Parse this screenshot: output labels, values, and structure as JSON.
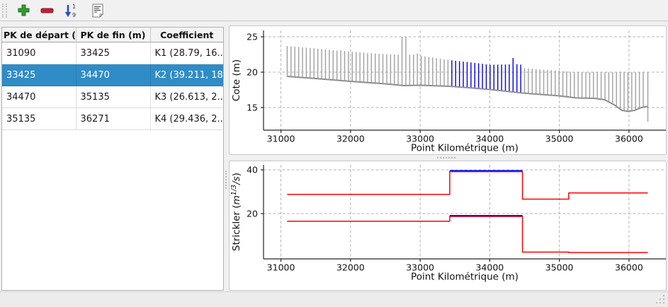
{
  "toolbar": {
    "buttons": [
      {
        "id": "add",
        "icon": "plus-icon"
      },
      {
        "id": "remove",
        "icon": "minus-icon"
      },
      {
        "id": "sort",
        "icon": "sort-numeric-icon",
        "hint_top": "1",
        "hint_bottom": "9"
      },
      {
        "id": "report",
        "icon": "report-icon"
      }
    ]
  },
  "table": {
    "columns": [
      "PK de départ (m)",
      "PK de fin (m)",
      "Coefficient"
    ],
    "rows": [
      {
        "pk_start": "31090",
        "pk_end": "33425",
        "coefficient": "K1 (28.79, 16....",
        "selected": false
      },
      {
        "pk_start": "33425",
        "pk_end": "34470",
        "coefficient": "K2 (39.211, 18...",
        "selected": true
      },
      {
        "pk_start": "34470",
        "pk_end": "35135",
        "coefficient": "K3 (26.613, 2....",
        "selected": false
      },
      {
        "pk_start": "35135",
        "pk_end": "36271",
        "coefficient": "K4 (29.436, 2....",
        "selected": false
      }
    ],
    "selection_color": "#308cc6"
  },
  "chart_data": [
    {
      "type": "bar",
      "title": "",
      "xlabel": "Point Kilométrique (m)",
      "ylabel": "Cote (m)",
      "xlim": [
        30750,
        36530
      ],
      "ylim": [
        11.8,
        25.9
      ],
      "xticks": [
        31000,
        32000,
        33000,
        34000,
        35000,
        36000
      ],
      "yticks": [
        15,
        20,
        25
      ],
      "grid": true,
      "colors": {
        "bar": "#a0a0a0",
        "bed": "#8f8f8f",
        "selected": "#0000ee"
      },
      "selected_range": [
        33425,
        34470
      ],
      "bars": {
        "start": 31090,
        "end": 36250,
        "step": 55
      },
      "final_profile": {
        "x": 36271,
        "bottom": 13.0,
        "top": 20.0
      },
      "bed_points": [
        [
          31090,
          19.4
        ],
        [
          31500,
          19.1
        ],
        [
          32000,
          18.7
        ],
        [
          32500,
          18.35
        ],
        [
          32760,
          18.1
        ],
        [
          33000,
          18.15
        ],
        [
          33425,
          18.0
        ],
        [
          33700,
          17.8
        ],
        [
          34000,
          17.55
        ],
        [
          34470,
          17.05
        ],
        [
          34800,
          16.8
        ],
        [
          35000,
          16.65
        ],
        [
          35250,
          16.35
        ],
        [
          35500,
          16.3
        ],
        [
          35650,
          16.1
        ],
        [
          35800,
          15.3
        ],
        [
          35900,
          14.6
        ],
        [
          35990,
          14.45
        ],
        [
          36080,
          14.6
        ],
        [
          36180,
          15.0
        ],
        [
          36271,
          15.15
        ]
      ],
      "top_points": [
        [
          31090,
          23.7
        ],
        [
          31500,
          23.35
        ],
        [
          31840,
          23.0
        ],
        [
          31860,
          23.1
        ],
        [
          31900,
          23.1
        ],
        [
          31920,
          22.95
        ],
        [
          32000,
          22.9
        ],
        [
          32400,
          22.6
        ],
        [
          32730,
          22.45
        ],
        [
          32735,
          25.0
        ],
        [
          32800,
          25.0
        ],
        [
          32810,
          22.45
        ],
        [
          32900,
          22.45
        ],
        [
          32940,
          22.65
        ],
        [
          32980,
          22.65
        ],
        [
          33020,
          22.3
        ],
        [
          33425,
          21.7
        ],
        [
          33800,
          21.3
        ],
        [
          34000,
          21.05
        ],
        [
          34300,
          21.1
        ],
        [
          34320,
          22.0
        ],
        [
          34350,
          22.0
        ],
        [
          34370,
          21.15
        ],
        [
          34460,
          21.05
        ],
        [
          34470,
          20.6
        ],
        [
          34700,
          20.4
        ],
        [
          35000,
          20.2
        ],
        [
          35200,
          20.0
        ],
        [
          36271,
          20.0
        ]
      ]
    },
    {
      "type": "step",
      "title": "",
      "xlabel": "Point Kilométrique (m)",
      "ylabel_parts": [
        {
          "t": "Strickler ("
        },
        {
          "t": "m",
          "i": true
        },
        {
          "t": "1/3",
          "sup": true,
          "i": true
        },
        {
          "t": "/s",
          "back": true,
          "i": true
        },
        {
          "t": ")"
        }
      ],
      "xlim": [
        30750,
        36530
      ],
      "ylim": [
        -0.7,
        42.3
      ],
      "xticks": [
        31000,
        32000,
        33000,
        34000,
        35000,
        36000
      ],
      "yticks": [
        20,
        40
      ],
      "grid": true,
      "colors": {
        "selected": "#0000ee",
        "line": "#ff0000"
      },
      "selected_range": [
        33425,
        34470
      ],
      "series": [
        {
          "id": "strickler-lit-mineur",
          "color": "#ff0000",
          "steps": [
            [
              31090,
              33425,
              28.79
            ],
            [
              33425,
              34470,
              39.211
            ],
            [
              34470,
              35135,
              26.613
            ],
            [
              35135,
              36271,
              29.436
            ]
          ]
        },
        {
          "id": "strickler-lit-majeur",
          "color": "#ff0000",
          "steps": [
            [
              31090,
              33425,
              16.5
            ],
            [
              33425,
              34470,
              18.7
            ],
            [
              34470,
              35135,
              2.4
            ],
            [
              35135,
              36271,
              2.2
            ]
          ]
        }
      ]
    }
  ]
}
